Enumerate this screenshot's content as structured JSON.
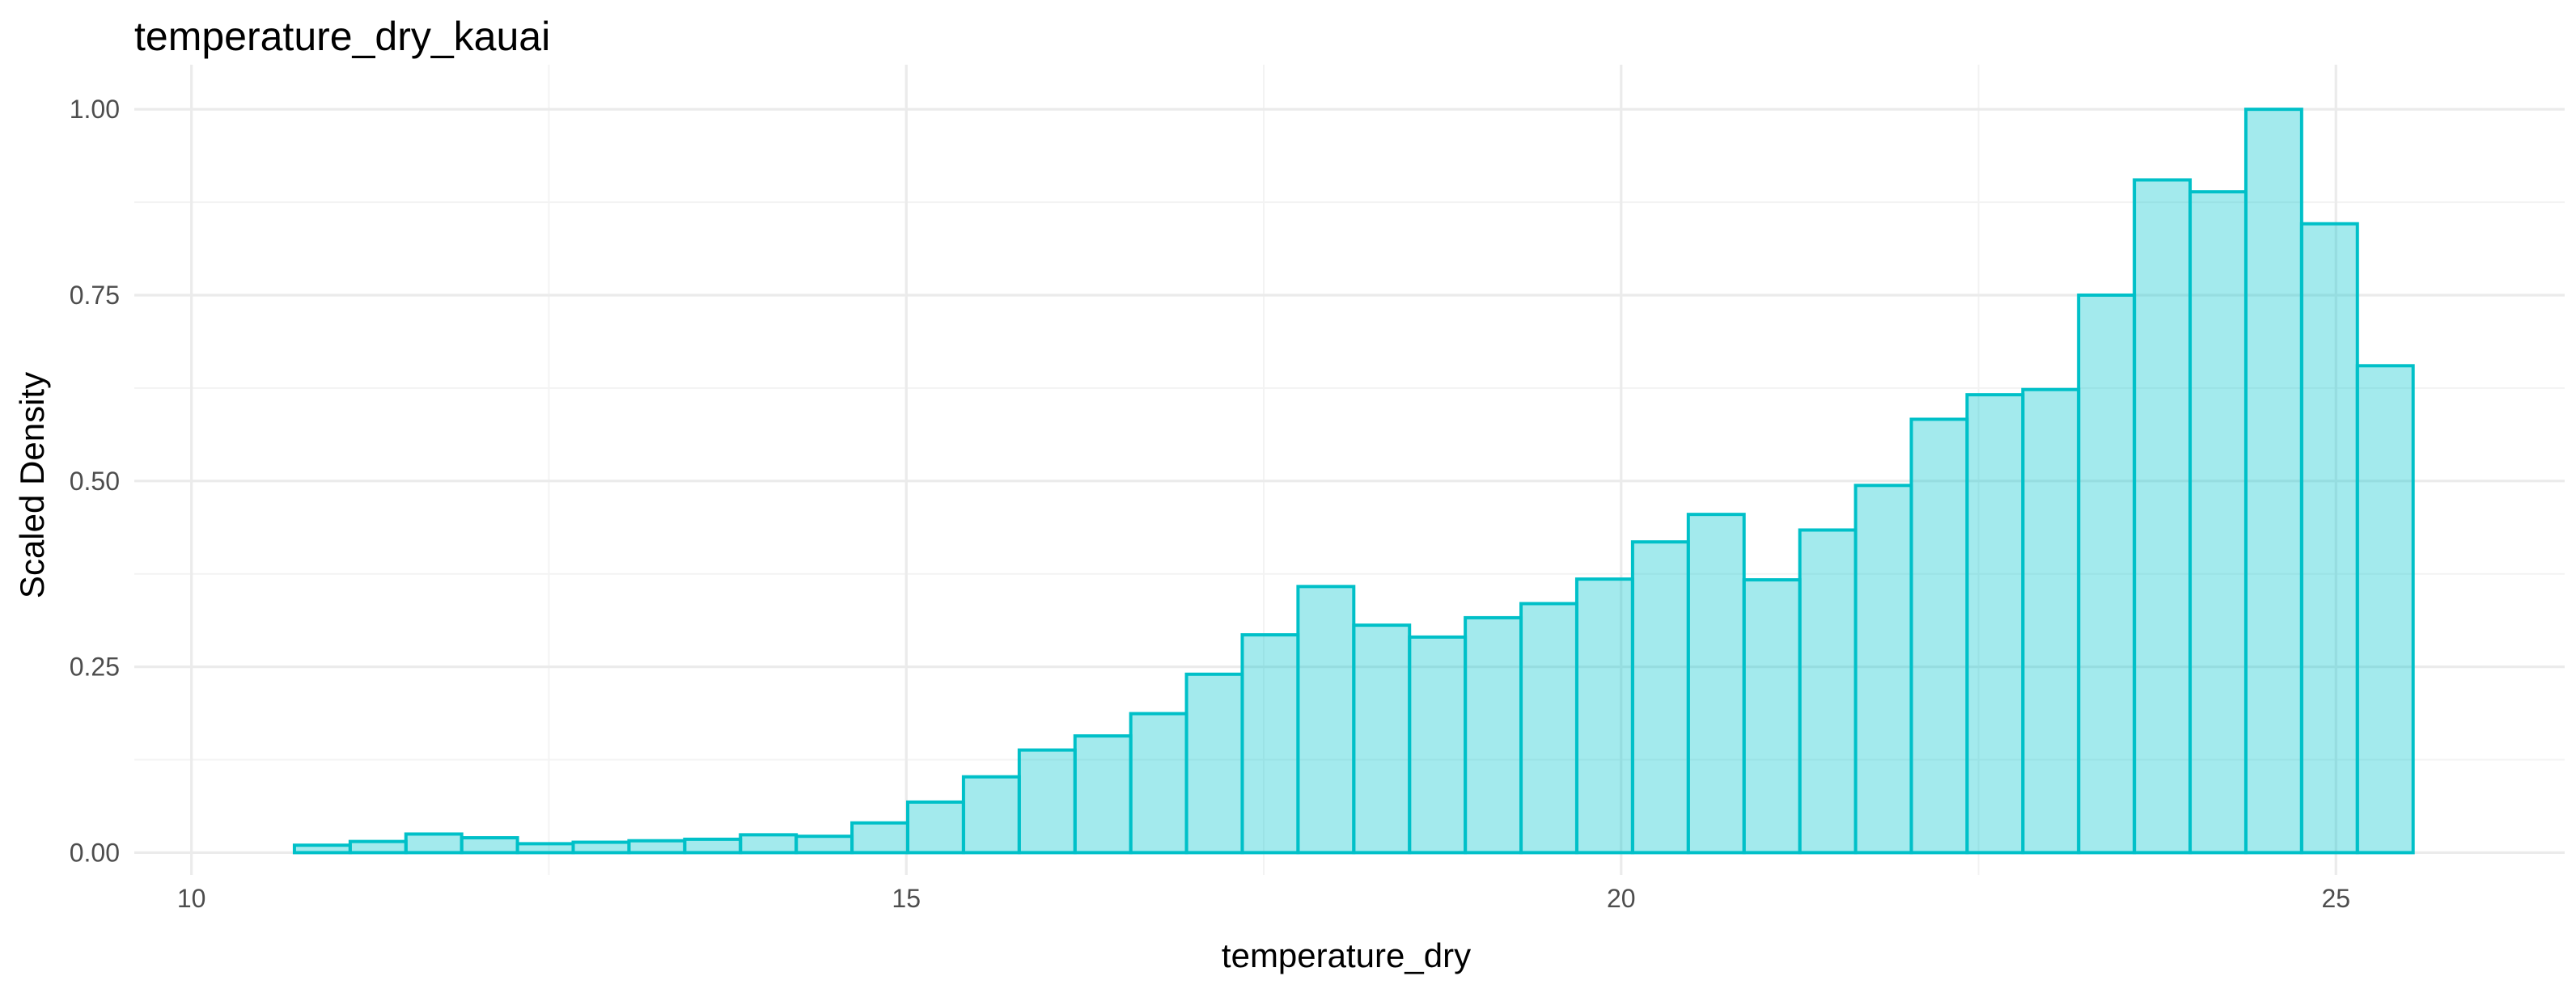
{
  "chart_data": {
    "type": "bar",
    "title": "temperature_dry_kauai",
    "xlabel": "temperature_dry",
    "ylabel": "Scaled Density",
    "xlim": [
      9.6,
      26.6
    ],
    "ylim": [
      -0.03,
      1.06
    ],
    "x_ticks": [
      10,
      15,
      20,
      25
    ],
    "x_tick_labels": [
      "10",
      "15",
      "20",
      "25"
    ],
    "y_ticks": [
      0,
      0.25,
      0.5,
      0.75,
      1.0
    ],
    "y_tick_labels": [
      "0.00",
      "0.25",
      "0.50",
      "0.75",
      "1.00"
    ],
    "grid": true,
    "bin_edges": [
      10.72,
      11.11,
      11.5,
      11.89,
      12.28,
      12.67,
      13.06,
      13.45,
      13.84,
      14.23,
      14.62,
      15.01,
      15.4,
      15.79,
      16.18,
      16.57,
      16.96,
      17.35,
      17.74,
      18.13,
      18.52,
      18.91,
      19.3,
      19.69,
      20.08,
      20.47,
      20.86,
      21.25,
      21.64,
      22.03,
      22.42,
      22.81,
      23.2,
      23.59,
      23.98,
      24.37,
      24.76,
      25.15,
      25.54
    ],
    "values": [
      0.01,
      0.015,
      0.025,
      0.02,
      0.012,
      0.014,
      0.016,
      0.018,
      0.024,
      0.022,
      0.04,
      0.068,
      0.102,
      0.138,
      0.157,
      0.187,
      0.24,
      0.293,
      0.358,
      0.306,
      0.29,
      0.316,
      0.335,
      0.368,
      0.418,
      0.455,
      0.367,
      0.434,
      0.494,
      0.583,
      0.616,
      0.623,
      0.75,
      0.905,
      0.889,
      1.0,
      0.846,
      0.655
    ],
    "color": "#00c0c8",
    "fill_color": "#a5e8ea"
  }
}
